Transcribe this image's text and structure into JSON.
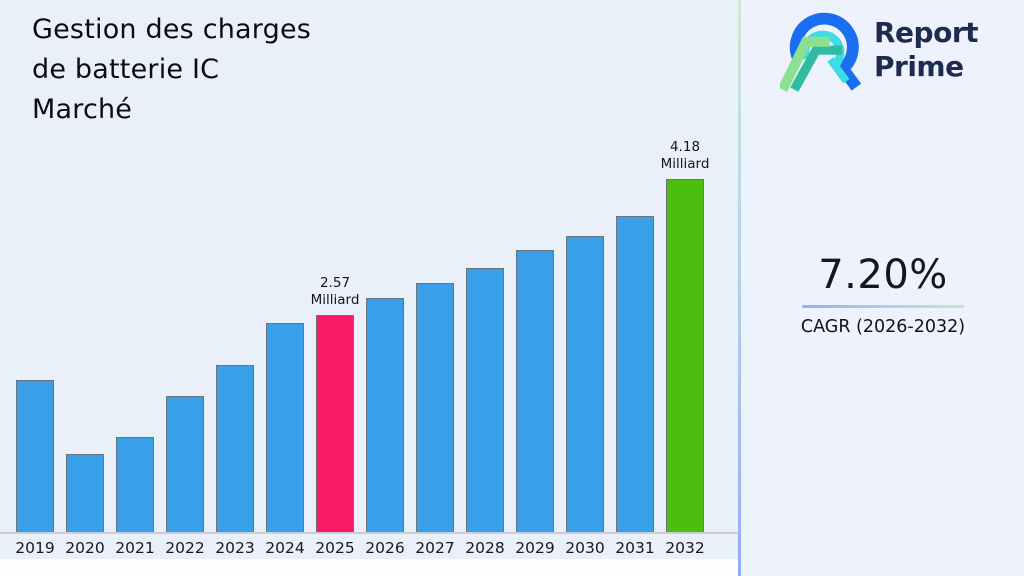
{
  "header": {
    "title_lines": [
      "Gestion des charges",
      "de batterie IC",
      "Marché"
    ]
  },
  "brand": {
    "name_line1": "Report",
    "name_line2": "Prime"
  },
  "cagr": {
    "value": "7.20%",
    "label": "CAGR (2026-2032)"
  },
  "chart_data": {
    "type": "bar",
    "title": "Gestion des charges de batterie IC Marché",
    "unit": "Milliard",
    "categories": [
      "2019",
      "2020",
      "2021",
      "2022",
      "2023",
      "2024",
      "2025",
      "2026",
      "2027",
      "2028",
      "2029",
      "2030",
      "2031",
      "2032"
    ],
    "values": [
      1.81,
      0.93,
      1.13,
      1.62,
      1.98,
      2.48,
      2.57,
      2.77,
      2.95,
      3.13,
      3.34,
      3.51,
      3.74,
      4.18
    ],
    "annotations": [
      {
        "year": "2025",
        "value_label": "2.57",
        "unit_label": "Milliard"
      },
      {
        "year": "2032",
        "value_label": "4.18",
        "unit_label": "Milliard"
      }
    ],
    "colors": {
      "default": "#38A0E8",
      "2025": "#FA1A64",
      "2032": "#4CBE0E"
    },
    "xlabel": "",
    "ylabel": "",
    "ylim": [
      0,
      4.4
    ],
    "grid": false,
    "legend": false
  }
}
